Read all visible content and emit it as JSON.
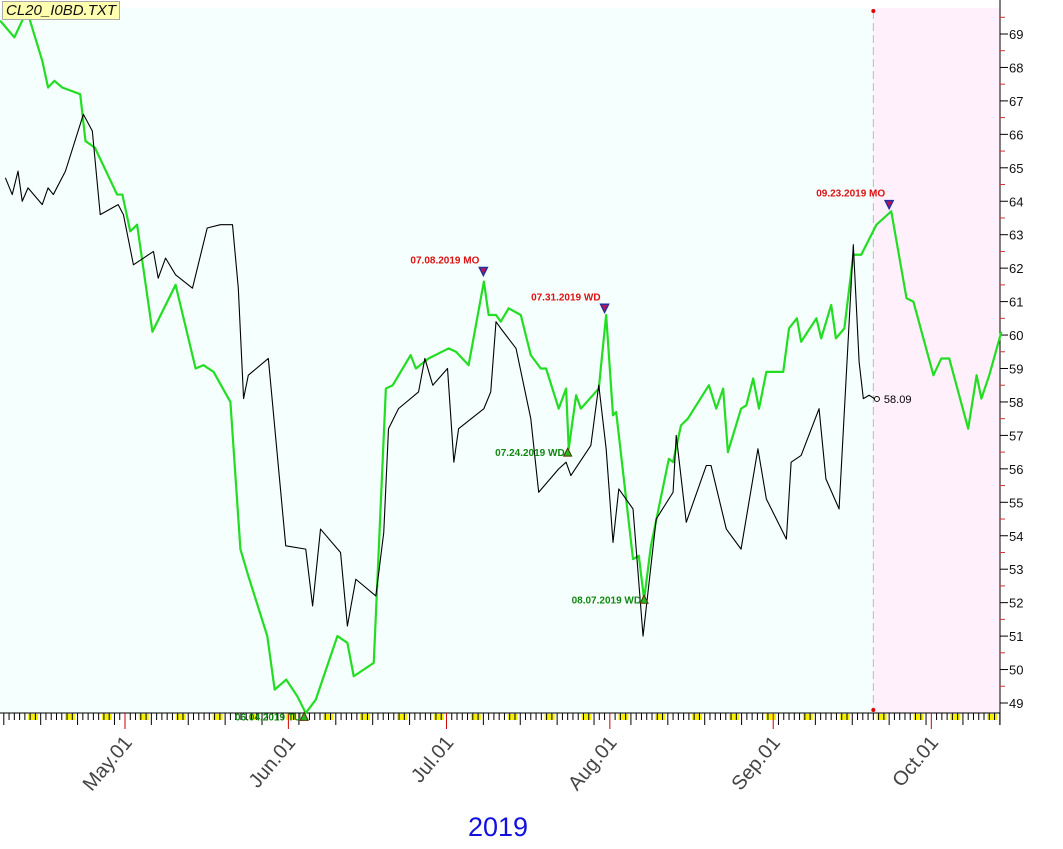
{
  "file_label": "CL20_I0BD.TXT",
  "chart_data": {
    "type": "line",
    "title": "CL20_I0BD.TXT",
    "x_units": "days since 2019-04-01",
    "xlim": [
      6.3,
      196.3
    ],
    "ylim": [
      48.7,
      69.8
    ],
    "year_label": "2019",
    "y_ticks": [
      49,
      50,
      51,
      52,
      53,
      54,
      55,
      56,
      57,
      58,
      59,
      60,
      61,
      62,
      63,
      64,
      65,
      66,
      67,
      68,
      69
    ],
    "x_ticks": [
      {
        "label": "May.01",
        "x": 30
      },
      {
        "label": "Jun.01",
        "x": 61
      },
      {
        "label": "Jul.01",
        "x": 91
      },
      {
        "label": "Aug.01",
        "x": 122
      },
      {
        "label": "Sep.01",
        "x": 153
      },
      {
        "label": "Oct.01",
        "x": 183
      }
    ],
    "divider_x": 172,
    "colors": {
      "plot_bg": "#f5fffd",
      "future_bg": "#fff0fb",
      "green": "#22dd22",
      "black": "#000000",
      "up": "#118811",
      "down": "#dd1111"
    },
    "series": [
      {
        "name": "green",
        "color": "#22dd22",
        "points": [
          [
            6.3,
            69.4
          ],
          [
            9.0,
            68.9
          ],
          [
            11.4,
            69.7
          ],
          [
            14.3,
            68.2
          ],
          [
            15.4,
            67.4
          ],
          [
            16.6,
            67.6
          ],
          [
            18.1,
            67.4
          ],
          [
            21.5,
            67.2
          ],
          [
            22.5,
            65.8
          ],
          [
            24.3,
            65.6
          ],
          [
            28.5,
            64.2
          ],
          [
            29.5,
            64.2
          ],
          [
            31.0,
            63.1
          ],
          [
            32.3,
            63.3
          ],
          [
            35.2,
            60.1
          ],
          [
            39.6,
            61.5
          ],
          [
            43.4,
            59.0
          ],
          [
            44.9,
            59.1
          ],
          [
            46.8,
            58.9
          ],
          [
            50.0,
            58.0
          ],
          [
            51.9,
            53.6
          ],
          [
            53.4,
            52.8
          ],
          [
            57.0,
            51.0
          ],
          [
            58.4,
            49.4
          ],
          [
            60.6,
            49.7
          ],
          [
            62.7,
            49.2
          ],
          [
            64.3,
            48.7
          ],
          [
            66.2,
            49.1
          ],
          [
            70.3,
            51.0
          ],
          [
            72.2,
            50.8
          ],
          [
            73.4,
            49.8
          ],
          [
            77.2,
            50.2
          ],
          [
            79.5,
            58.4
          ],
          [
            80.8,
            58.5
          ],
          [
            84.2,
            59.4
          ],
          [
            85.2,
            59.0
          ],
          [
            87.6,
            59.3
          ],
          [
            91.4,
            59.6
          ],
          [
            92.8,
            59.5
          ],
          [
            95.2,
            59.1
          ],
          [
            98.1,
            61.6
          ],
          [
            99.0,
            60.6
          ],
          [
            100.4,
            60.6
          ],
          [
            101.3,
            60.4
          ],
          [
            102.8,
            60.8
          ],
          [
            105.1,
            60.6
          ],
          [
            107.0,
            59.4
          ],
          [
            108.9,
            59.0
          ],
          [
            109.9,
            59.0
          ],
          [
            112.3,
            57.8
          ],
          [
            113.7,
            58.4
          ],
          [
            114.2,
            56.6
          ],
          [
            115.6,
            58.2
          ],
          [
            116.5,
            57.8
          ],
          [
            119.9,
            58.4
          ],
          [
            121.3,
            60.6
          ],
          [
            122.6,
            57.6
          ],
          [
            123.2,
            57.7
          ],
          [
            126.4,
            53.3
          ],
          [
            127.5,
            53.4
          ],
          [
            128.5,
            52.1
          ],
          [
            129.8,
            53.7
          ],
          [
            133.2,
            56.3
          ],
          [
            134.0,
            56.2
          ],
          [
            135.5,
            57.3
          ],
          [
            136.8,
            57.5
          ],
          [
            140.8,
            58.5
          ],
          [
            142.2,
            57.8
          ],
          [
            143.5,
            58.4
          ],
          [
            144.4,
            56.5
          ],
          [
            146.9,
            57.8
          ],
          [
            147.9,
            57.9
          ],
          [
            149.2,
            58.7
          ],
          [
            150.3,
            57.8
          ],
          [
            151.7,
            58.9
          ],
          [
            154.9,
            58.9
          ],
          [
            156.0,
            60.2
          ],
          [
            157.5,
            60.5
          ],
          [
            158.3,
            59.8
          ],
          [
            161.2,
            60.5
          ],
          [
            162.1,
            59.9
          ],
          [
            164.0,
            60.9
          ],
          [
            164.9,
            59.9
          ],
          [
            166.5,
            60.2
          ],
          [
            168.2,
            62.4
          ],
          [
            169.7,
            62.4
          ],
          [
            172.6,
            63.3
          ],
          [
            175.4,
            63.7
          ],
          [
            178.3,
            61.1
          ],
          [
            179.6,
            61.0
          ],
          [
            183.4,
            58.8
          ],
          [
            184.9,
            59.3
          ],
          [
            186.4,
            59.3
          ],
          [
            190.0,
            57.2
          ],
          [
            191.6,
            58.8
          ],
          [
            192.5,
            58.1
          ],
          [
            194.0,
            58.8
          ],
          [
            196.3,
            60.1
          ]
        ]
      },
      {
        "name": "black",
        "color": "#000000",
        "points": [
          [
            7.3,
            64.7
          ],
          [
            8.6,
            64.2
          ],
          [
            9.7,
            64.9
          ],
          [
            10.5,
            64.0
          ],
          [
            11.6,
            64.4
          ],
          [
            14.3,
            63.9
          ],
          [
            15.4,
            64.4
          ],
          [
            16.4,
            64.2
          ],
          [
            18.7,
            64.9
          ],
          [
            22.1,
            66.6
          ],
          [
            23.8,
            66.1
          ],
          [
            25.3,
            63.6
          ],
          [
            28.7,
            63.9
          ],
          [
            29.7,
            63.6
          ],
          [
            31.6,
            62.1
          ],
          [
            35.4,
            62.5
          ],
          [
            36.3,
            61.7
          ],
          [
            37.7,
            62.3
          ],
          [
            39.6,
            61.8
          ],
          [
            42.8,
            61.4
          ],
          [
            45.6,
            63.2
          ],
          [
            48.1,
            63.3
          ],
          [
            50.4,
            63.3
          ],
          [
            51.5,
            61.4
          ],
          [
            52.5,
            58.1
          ],
          [
            53.4,
            58.8
          ],
          [
            57.2,
            59.3
          ],
          [
            60.5,
            53.7
          ],
          [
            64.3,
            53.6
          ],
          [
            65.6,
            51.9
          ],
          [
            67.1,
            54.2
          ],
          [
            70.9,
            53.5
          ],
          [
            72.2,
            51.3
          ],
          [
            73.8,
            52.7
          ],
          [
            77.6,
            52.2
          ],
          [
            79.1,
            54.1
          ],
          [
            80.0,
            57.2
          ],
          [
            81.9,
            57.8
          ],
          [
            85.7,
            58.3
          ],
          [
            86.9,
            59.3
          ],
          [
            88.4,
            58.5
          ],
          [
            91.2,
            59.0
          ],
          [
            92.4,
            56.2
          ],
          [
            93.3,
            57.2
          ],
          [
            98.1,
            57.8
          ],
          [
            99.4,
            58.3
          ],
          [
            100.4,
            60.4
          ],
          [
            101.3,
            60.2
          ],
          [
            104.2,
            59.6
          ],
          [
            107.0,
            57.5
          ],
          [
            108.5,
            55.3
          ],
          [
            112.3,
            56.0
          ],
          [
            113.7,
            56.2
          ],
          [
            114.6,
            55.8
          ],
          [
            118.4,
            56.7
          ],
          [
            119.9,
            58.5
          ],
          [
            121.3,
            56.6
          ],
          [
            122.6,
            53.8
          ],
          [
            123.7,
            55.4
          ],
          [
            126.4,
            54.8
          ],
          [
            128.3,
            51.0
          ],
          [
            130.8,
            54.5
          ],
          [
            134.0,
            55.3
          ],
          [
            134.6,
            57.0
          ],
          [
            136.5,
            54.4
          ],
          [
            140.3,
            56.1
          ],
          [
            141.2,
            56.1
          ],
          [
            144.1,
            54.2
          ],
          [
            146.9,
            53.6
          ],
          [
            150.1,
            56.6
          ],
          [
            151.7,
            55.1
          ],
          [
            155.5,
            53.9
          ],
          [
            156.4,
            56.2
          ],
          [
            158.3,
            56.4
          ],
          [
            161.7,
            57.8
          ],
          [
            163.0,
            55.7
          ],
          [
            165.5,
            54.8
          ],
          [
            168.2,
            62.7
          ],
          [
            169.3,
            59.2
          ],
          [
            170.1,
            58.1
          ],
          [
            171.2,
            58.2
          ],
          [
            172.3,
            58.09
          ]
        ]
      }
    ],
    "last_value_label": "58.09",
    "annotations": [
      {
        "label": "06.04.2019 TU",
        "x": 64,
        "y": 48.6,
        "kind": "up"
      },
      {
        "label": "07.08.2019 MO",
        "x": 98,
        "y": 61.9,
        "kind": "down"
      },
      {
        "label": "07.24.2019 WD",
        "x": 114,
        "y": 56.5,
        "kind": "up"
      },
      {
        "label": "07.31.2019 WD",
        "x": 121,
        "y": 60.8,
        "kind": "down"
      },
      {
        "label": "08.07.2019 WD",
        "x": 128.5,
        "y": 52.1,
        "kind": "up"
      },
      {
        "label": "09.23.2019 MO",
        "x": 175,
        "y": 63.9,
        "kind": "down"
      }
    ]
  }
}
